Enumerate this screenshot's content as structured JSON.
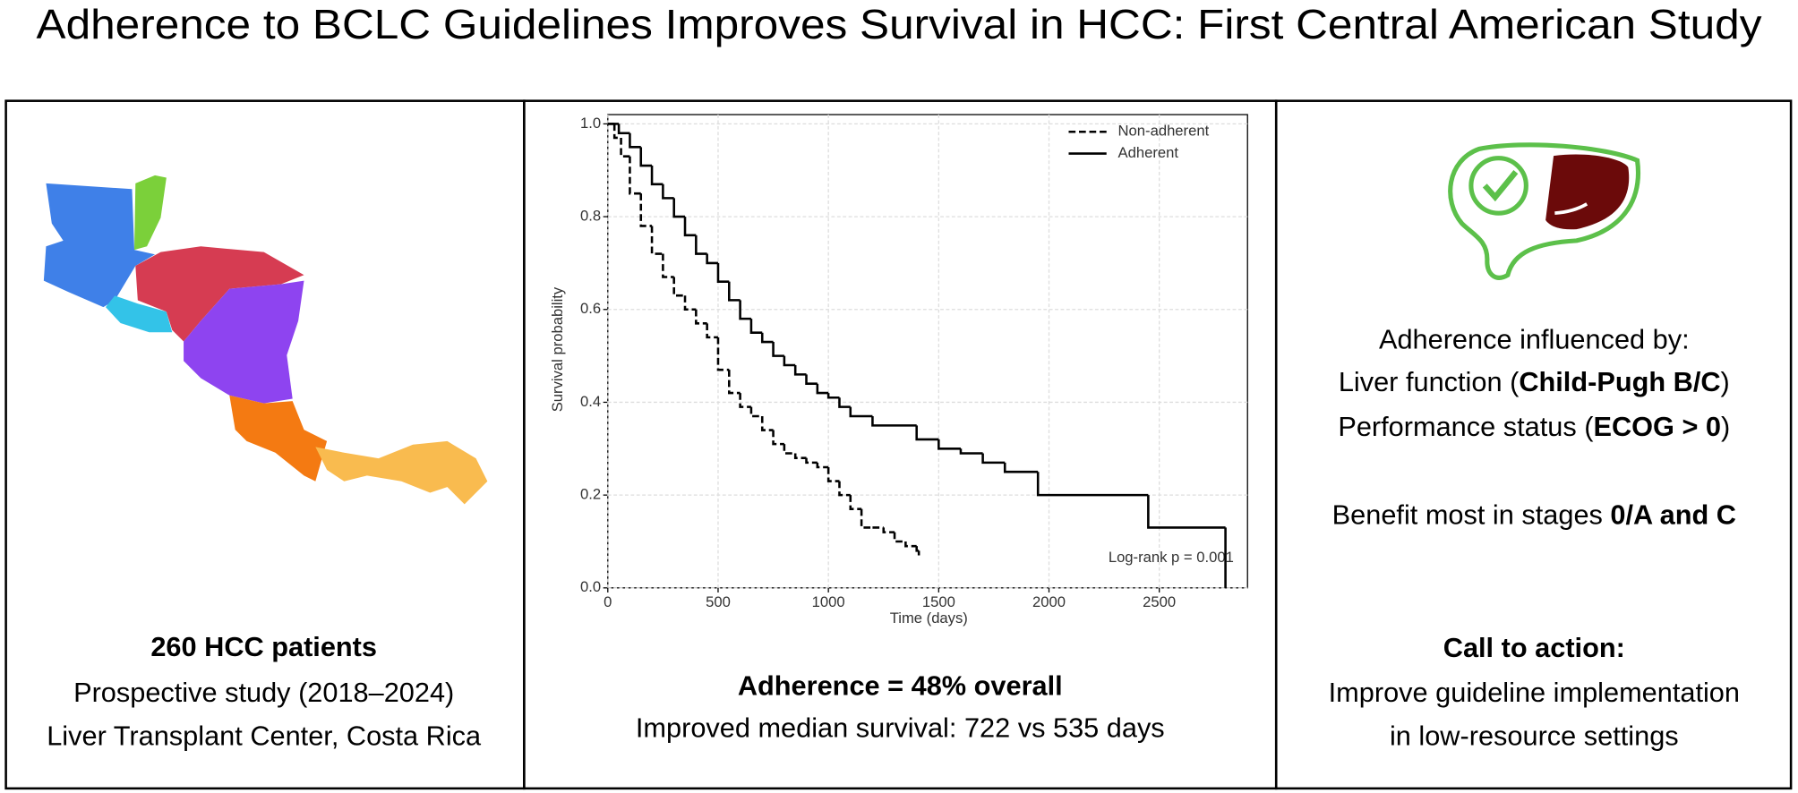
{
  "header": {
    "title": "Adherence to BCLC Guidelines Improves Survival in HCC: First Central American Study"
  },
  "left_panel": {
    "patients": "260 HCC patients",
    "design": "Prospective study (2018–2024)",
    "center": "Liver Transplant Center, Costa Rica"
  },
  "middle_panel": {
    "summary": "Adherence = 48% overall",
    "median_survival": "Improved median survival: 722 vs 535 days"
  },
  "right_panel": {
    "influence_heading": "Adherence influenced by:",
    "factors": [
      [
        "Liver function (",
        "Child-Pugh B/C",
        ")"
      ],
      [
        "Performance status (",
        "ECOG > 0",
        ")"
      ]
    ],
    "benefit": [
      "Benefit most in stages ",
      "0/A and C"
    ],
    "call_heading": "Call to action:",
    "call_lines": [
      "Improve guideline implementation",
      "in low-resource settings"
    ]
  },
  "chart_data": {
    "type": "line",
    "step": true,
    "x_label": "Time (days)",
    "y_label": "Survival probability",
    "xlim": [
      0,
      2900
    ],
    "ylim": [
      0,
      1.02
    ],
    "xticks": [
      0,
      500,
      1000,
      1500,
      2000,
      2500
    ],
    "yticks": [
      {
        "value": 0,
        "label": "0.0"
      },
      0.2,
      0.4,
      0.6,
      0.8,
      {
        "value": 1,
        "label": "1.0"
      }
    ],
    "grid": true,
    "legend": "upper right",
    "annotation": "Log-rank p = 0.001",
    "series": [
      {
        "name": "Non-adherent",
        "color": "#000000",
        "linestyle": "dashed",
        "x": [
          0,
          30,
          60,
          100,
          150,
          200,
          250,
          300,
          350,
          400,
          450,
          500,
          550,
          600,
          650,
          700,
          750,
          800,
          850,
          900,
          950,
          1000,
          1050,
          1100,
          1150,
          1200,
          1250,
          1300,
          1350,
          1400,
          1410
        ],
        "values": [
          1.0,
          0.97,
          0.93,
          0.85,
          0.78,
          0.72,
          0.67,
          0.63,
          0.6,
          0.57,
          0.54,
          0.47,
          0.42,
          0.39,
          0.37,
          0.34,
          0.31,
          0.29,
          0.28,
          0.27,
          0.26,
          0.23,
          0.2,
          0.17,
          0.13,
          0.13,
          0.12,
          0.1,
          0.09,
          0.08,
          0.07
        ]
      },
      {
        "name": "Adherent",
        "color": "#000000",
        "linestyle": "solid",
        "x": [
          0,
          50,
          100,
          150,
          200,
          250,
          300,
          350,
          400,
          450,
          500,
          550,
          600,
          650,
          700,
          750,
          800,
          850,
          900,
          950,
          1000,
          1050,
          1100,
          1200,
          1400,
          1500,
          1600,
          1700,
          1800,
          1950,
          2450,
          2800
        ],
        "values": [
          1.0,
          0.98,
          0.95,
          0.91,
          0.87,
          0.84,
          0.8,
          0.76,
          0.72,
          0.7,
          0.66,
          0.62,
          0.58,
          0.55,
          0.53,
          0.5,
          0.48,
          0.46,
          0.44,
          0.42,
          0.41,
          0.39,
          0.37,
          0.35,
          0.32,
          0.3,
          0.29,
          0.27,
          0.25,
          0.2,
          0.13,
          0
        ]
      }
    ]
  }
}
